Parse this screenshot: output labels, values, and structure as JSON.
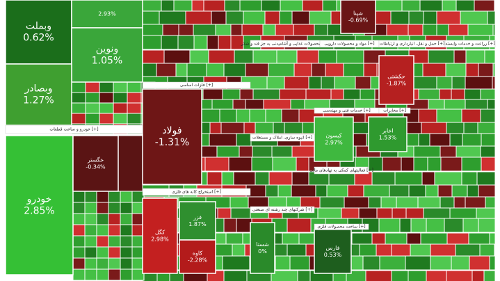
{
  "chart_data": {
    "type": "treemap",
    "categories": [
      "وبملت",
      null,
      "ونوین",
      "وبصادر",
      "خودرو",
      "خگستر",
      "فولاد",
      "کگل",
      "فزر",
      "کاوه",
      "کیسون",
      "اخابر",
      "حکشتی",
      "شستا",
      "فارس",
      "شپنا"
    ],
    "values": [
      0.62,
      2.93,
      1.05,
      1.27,
      2.85,
      -0.34,
      -1.31,
      2.98,
      1.87,
      -2.28,
      2.97,
      1.53,
      -1.87,
      0,
      0.53,
      -0.69
    ],
    "value_labels": [
      "0.62%",
      "2.93%",
      "1.05%",
      "1.27%",
      "2.85%",
      "-0.34%",
      "-1.31%",
      "2.98%",
      "1.87%",
      "-2.28%",
      "2.97%",
      "1.53%",
      "-1.87%",
      "0%",
      "0.53%",
      "-0.69%"
    ],
    "colors": [
      "#1b6e1b",
      "#3aa63a",
      "#3aa63a",
      "#3f9f30",
      "#35c035",
      "#5a1414",
      "#6e1616",
      "#c32020",
      "#2f8f2f",
      "#b31b1b",
      "#3fb83f",
      "#2f9a2f",
      "#b52020",
      "#2a8a2a",
      "#1e5e1e",
      "#6a1515"
    ],
    "sections": [
      "خودرو و ساخت قطعات [+]",
      "فلزات اساسی [+]",
      "استخراج کانه های فلزی [+]",
      "انبوه سازی، املاک و مستغلات [+]",
      "شرکتهای چند رشته ای صنعتی [+]",
      "فعالیتهای کمکی به نهادهای مالی [+]",
      "ساخت محصولات فلزی [+]",
      "خدمات فنی و مهندسی [+]",
      "مخابرات [+]",
      "محصولات غذایی و آشامیدنی به جز قند و شکر [+]",
      "مواد و محصولات دارویی [+]",
      "حمل و نقل، انبارداری و ارتباطات [+]",
      "زراعت و خدمات وابسته [+]"
    ]
  }
}
